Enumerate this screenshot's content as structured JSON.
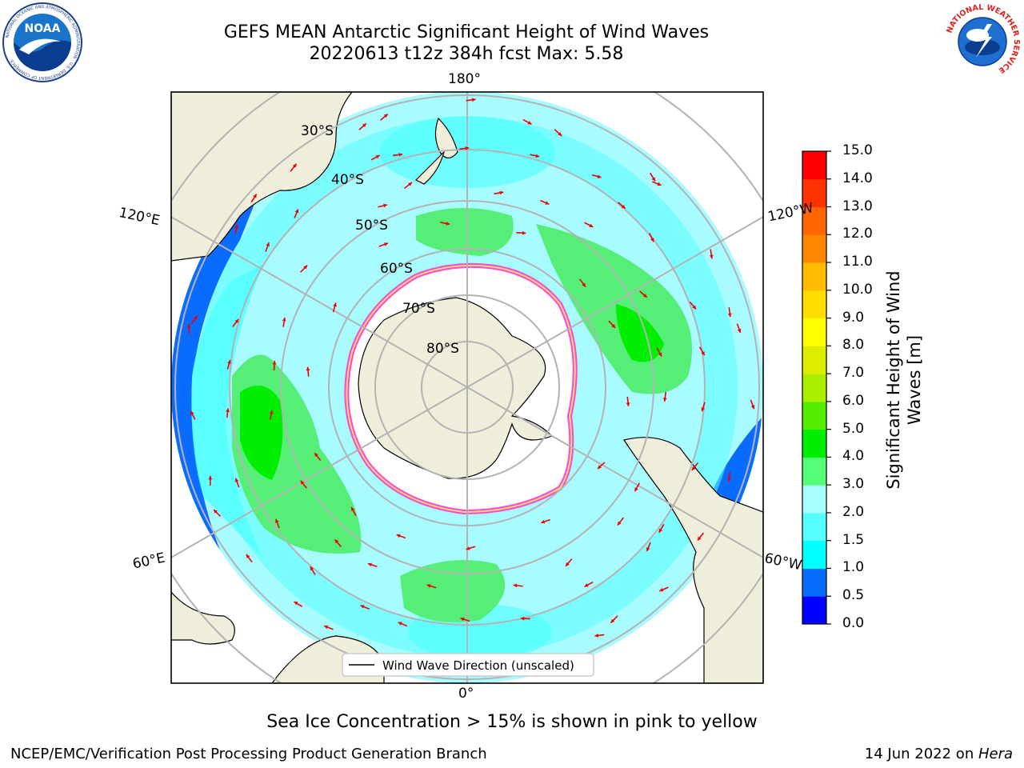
{
  "header": {
    "title_line1": "GEFS MEAN Antarctic Significant Height of Wind Waves",
    "title_line2": "20220613 t12z 384h fcst   Max: 5.58"
  },
  "logos": {
    "left_name": "NOAA",
    "left_ring_text": "NATIONAL OCEANIC AND ATMOSPHERIC ADMINISTRATION · U.S. DEPARTMENT OF COMMERCE",
    "right_ring_text": "NATIONAL WEATHER SERVICE"
  },
  "map": {
    "projection": "south-polar-stereographic",
    "lon_labels": {
      "top": "180°",
      "bottom": "0°",
      "upper_left": "120°E",
      "upper_right": "120°W",
      "lower_left": "60°E",
      "lower_right": "60°W"
    },
    "lat_labels": [
      "30°S",
      "40°S",
      "50°S",
      "60°S",
      "70°S",
      "80°S"
    ],
    "legend_label": "Wind Wave Direction (unscaled)",
    "colors": {
      "land": "#efeedb",
      "ice": "#ffffff",
      "ice_edge": "#ff44dd",
      "arrow": "#ee0000",
      "grid": "#b3b3b3"
    }
  },
  "colorbar": {
    "title_line1": "Significant Height of Wind",
    "title_line2": "Waves [m]",
    "ticks": [
      "0.0",
      "0.5",
      "1.0",
      "1.5",
      "2.0",
      "3.0",
      "4.0",
      "5.0",
      "6.0",
      "7.0",
      "8.0",
      "9.0",
      "10.0",
      "11.0",
      "12.0",
      "13.0",
      "14.0",
      "15.0"
    ],
    "colors": [
      "#0000ff",
      "#0a6bff",
      "#00ffff",
      "#55ffff",
      "#aaffff",
      "#55ff77",
      "#00ee00",
      "#55ee00",
      "#aaee00",
      "#dded00",
      "#ffff00",
      "#ffdd00",
      "#ffbb00",
      "#ff8800",
      "#ff6600",
      "#ff3300",
      "#ff0000"
    ]
  },
  "note": "Sea Ice Concentration > 15% is shown in pink to yellow",
  "footer": {
    "left": "NCEP/EMC/Verification Post Processing Product Generation Branch",
    "right_prefix": "14 Jun 2022 on ",
    "right_host": "Hera"
  }
}
